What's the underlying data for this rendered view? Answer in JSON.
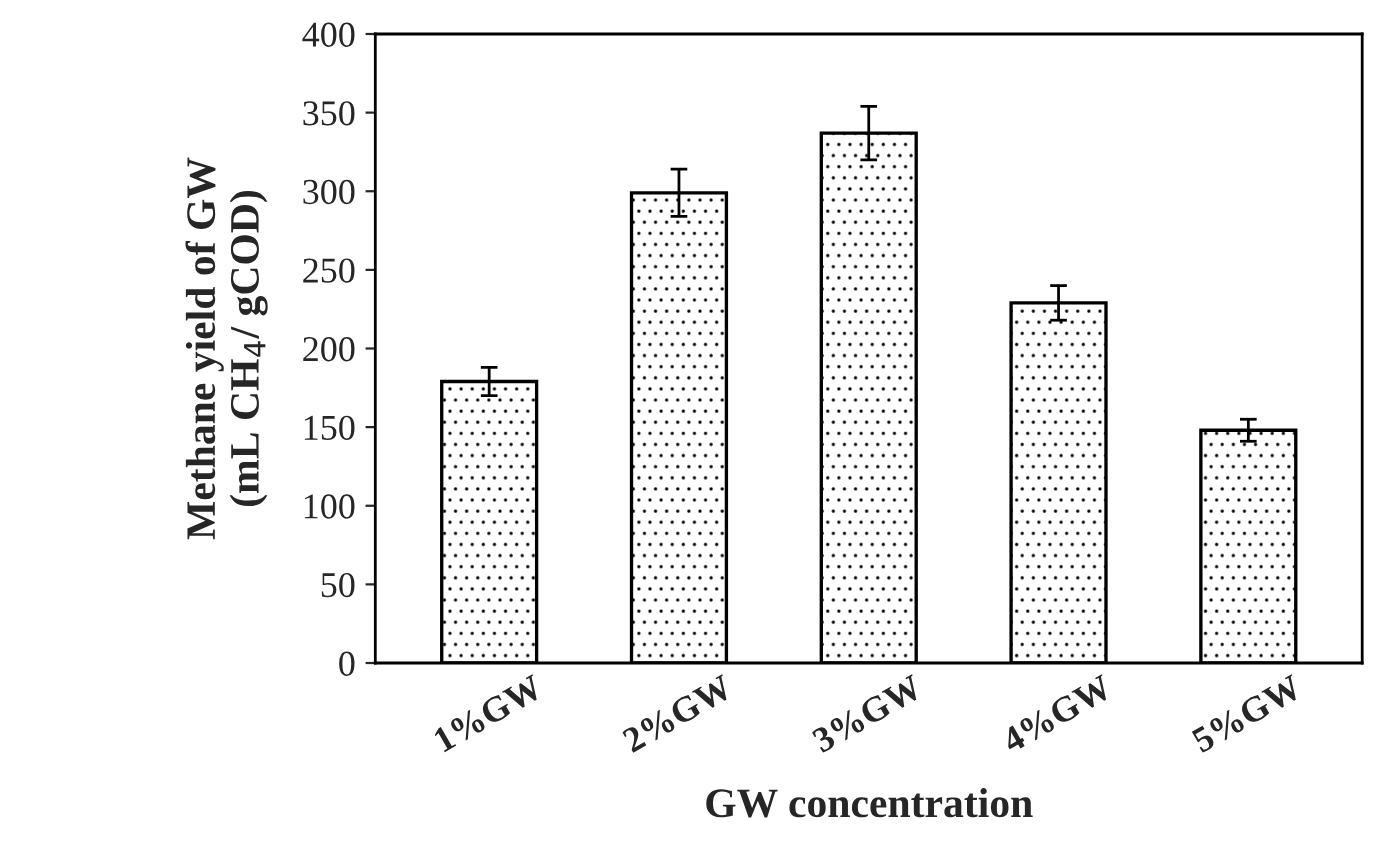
{
  "chart_data": {
    "type": "bar",
    "xlabel": "GW concentration",
    "ylabel": "Methane yield of GW\n(mL CH$_{4}$/ gCOD)",
    "categories": [
      "1%GW",
      "2%GW",
      "3%GW",
      "4%GW",
      "5%GW"
    ],
    "values": [
      179,
      299,
      337,
      229,
      148
    ],
    "errors": [
      9,
      15,
      17,
      11,
      7
    ],
    "color": "#000000",
    "ylim": [
      0,
      400
    ],
    "yticks": [
      0,
      50,
      100,
      150,
      200,
      250,
      300,
      350,
      400
    ],
    "grid": false,
    "legend": false
  }
}
